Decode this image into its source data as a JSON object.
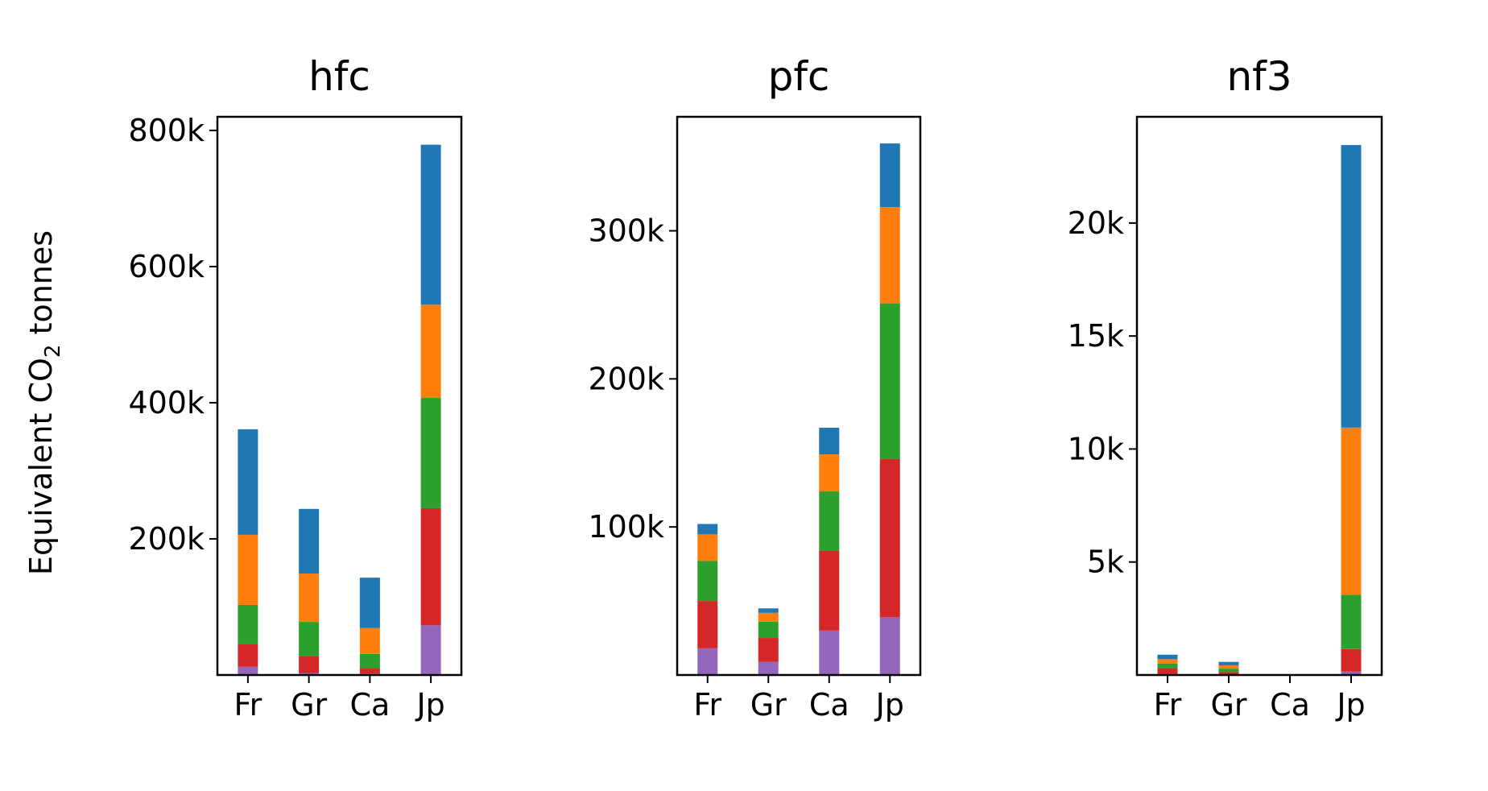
{
  "chart_data": {
    "ylabel": {
      "pre": "Equivalent CO",
      "sub": "2",
      "post": " tonnes"
    },
    "colors": [
      "#9467bd",
      "#d62728",
      "#2ca02c",
      "#ff7f0e",
      "#1f77b4"
    ],
    "subplots": [
      {
        "type": "bar",
        "stacked": true,
        "title": "hfc",
        "categories": [
          "Fr",
          "Gr",
          "Ca",
          "Jp"
        ],
        "ylim": [
          0,
          820000
        ],
        "yticks": [
          200000,
          400000,
          600000,
          800000
        ],
        "ytick_labels": [
          "200k",
          "400k",
          "600k",
          "800k"
        ],
        "segments": [
          [
            12000,
            33000,
            58000,
            103000,
            155000
          ],
          [
            3000,
            25000,
            50000,
            71000,
            95000
          ],
          [
            2000,
            8000,
            21000,
            38000,
            74000
          ],
          [
            73000,
            172000,
            162000,
            137000,
            235000
          ]
        ]
      },
      {
        "type": "bar",
        "stacked": true,
        "title": "pfc",
        "categories": [
          "Fr",
          "Gr",
          "Ca",
          "Jp"
        ],
        "ylim": [
          0,
          377000
        ],
        "yticks": [
          100000,
          200000,
          300000
        ],
        "ytick_labels": [
          "100k",
          "200k",
          "300k"
        ],
        "segments": [
          [
            18000,
            32000,
            27000,
            18000,
            7000
          ],
          [
            9000,
            16000,
            11000,
            6000,
            3000
          ],
          [
            30000,
            54000,
            40000,
            25000,
            18000
          ],
          [
            39000,
            107000,
            105000,
            65000,
            43000
          ]
        ]
      },
      {
        "type": "bar",
        "stacked": true,
        "title": "nf3",
        "categories": [
          "Fr",
          "Gr",
          "Ca",
          "Jp"
        ],
        "ylim": [
          0,
          24700
        ],
        "yticks": [
          5000,
          10000,
          15000,
          20000
        ],
        "ytick_labels": [
          "5k",
          "10k",
          "15k",
          "20k"
        ],
        "segments": [
          [
            50,
            250,
            200,
            200,
            200
          ],
          [
            30,
            100,
            150,
            150,
            150
          ],
          [
            0,
            0,
            0,
            0,
            0
          ],
          [
            150,
            1000,
            2400,
            7400,
            12500
          ]
        ]
      }
    ]
  }
}
